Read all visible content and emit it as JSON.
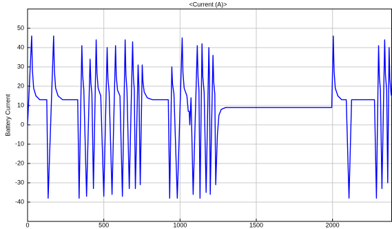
{
  "chart_data": {
    "type": "line",
    "title": "<Current (A)>",
    "y_label": "Battery Current",
    "color": "#0000ff",
    "x": [
      0,
      27,
      32,
      40,
      55,
      80,
      126,
      135,
      171,
      176,
      184,
      200,
      230,
      329,
      338,
      356,
      361,
      369,
      387,
      410,
      415,
      422,
      432,
      450,
      455,
      463,
      480,
      500,
      522,
      527,
      535,
      554,
      577,
      582,
      590,
      606,
      622,
      640,
      645,
      652,
      667,
      689,
      694,
      700,
      707,
      725,
      730,
      739,
      752,
      757,
      765,
      785,
      820,
      923,
      932,
      946,
      951,
      960,
      982,
      1014,
      1019,
      1027,
      1045,
      1054,
      1060,
      1064,
      1068,
      1072,
      1086,
      1113,
      1118,
      1124,
      1131,
      1144,
      1149,
      1158,
      1171,
      1189,
      1193,
      1198,
      1216,
      1221,
      1228,
      1234,
      1245,
      1255,
      1270,
      1300,
      1995,
      2005,
      2010,
      2018,
      2035,
      2060,
      2090,
      2108,
      2125,
      2275,
      2288,
      2302,
      2307,
      2314,
      2324,
      2342,
      2347,
      2355,
      2362,
      2371,
      2376,
      2384,
      2390
    ],
    "values": [
      0,
      46,
      28,
      19,
      15,
      13,
      13,
      -38,
      46,
      28,
      19,
      15,
      13,
      13,
      -38,
      41,
      26,
      18,
      -37,
      34,
      22,
      16,
      -33,
      44,
      27,
      19,
      15,
      -37,
      40,
      24,
      17,
      -36,
      41,
      25,
      18,
      15,
      -37,
      44,
      26,
      18,
      -33,
      43,
      25,
      18,
      -33,
      31,
      20,
      -31,
      31,
      22,
      17,
      14,
      13,
      13,
      -38,
      30,
      21,
      16,
      -38,
      45,
      27,
      19,
      15,
      7,
      7,
      0,
      7,
      14,
      -36,
      41,
      25,
      18,
      -38,
      42,
      25,
      17,
      -35,
      40,
      24,
      -36,
      36,
      22,
      16,
      -31,
      -5,
      5,
      8,
      9,
      9,
      46,
      28,
      19,
      15,
      13,
      13,
      -38,
      13,
      13,
      -38,
      41,
      25,
      18,
      -33,
      44,
      26,
      18,
      -30,
      40,
      24,
      16,
      14
    ],
    "xlim": [
      0,
      2390
    ],
    "ylim": [
      -50,
      60
    ],
    "xticks": [
      0,
      500,
      1000,
      1500,
      2000
    ],
    "yticks": [
      -40,
      -30,
      -20,
      -10,
      0,
      10,
      20,
      30,
      40,
      50
    ],
    "grid": true
  }
}
